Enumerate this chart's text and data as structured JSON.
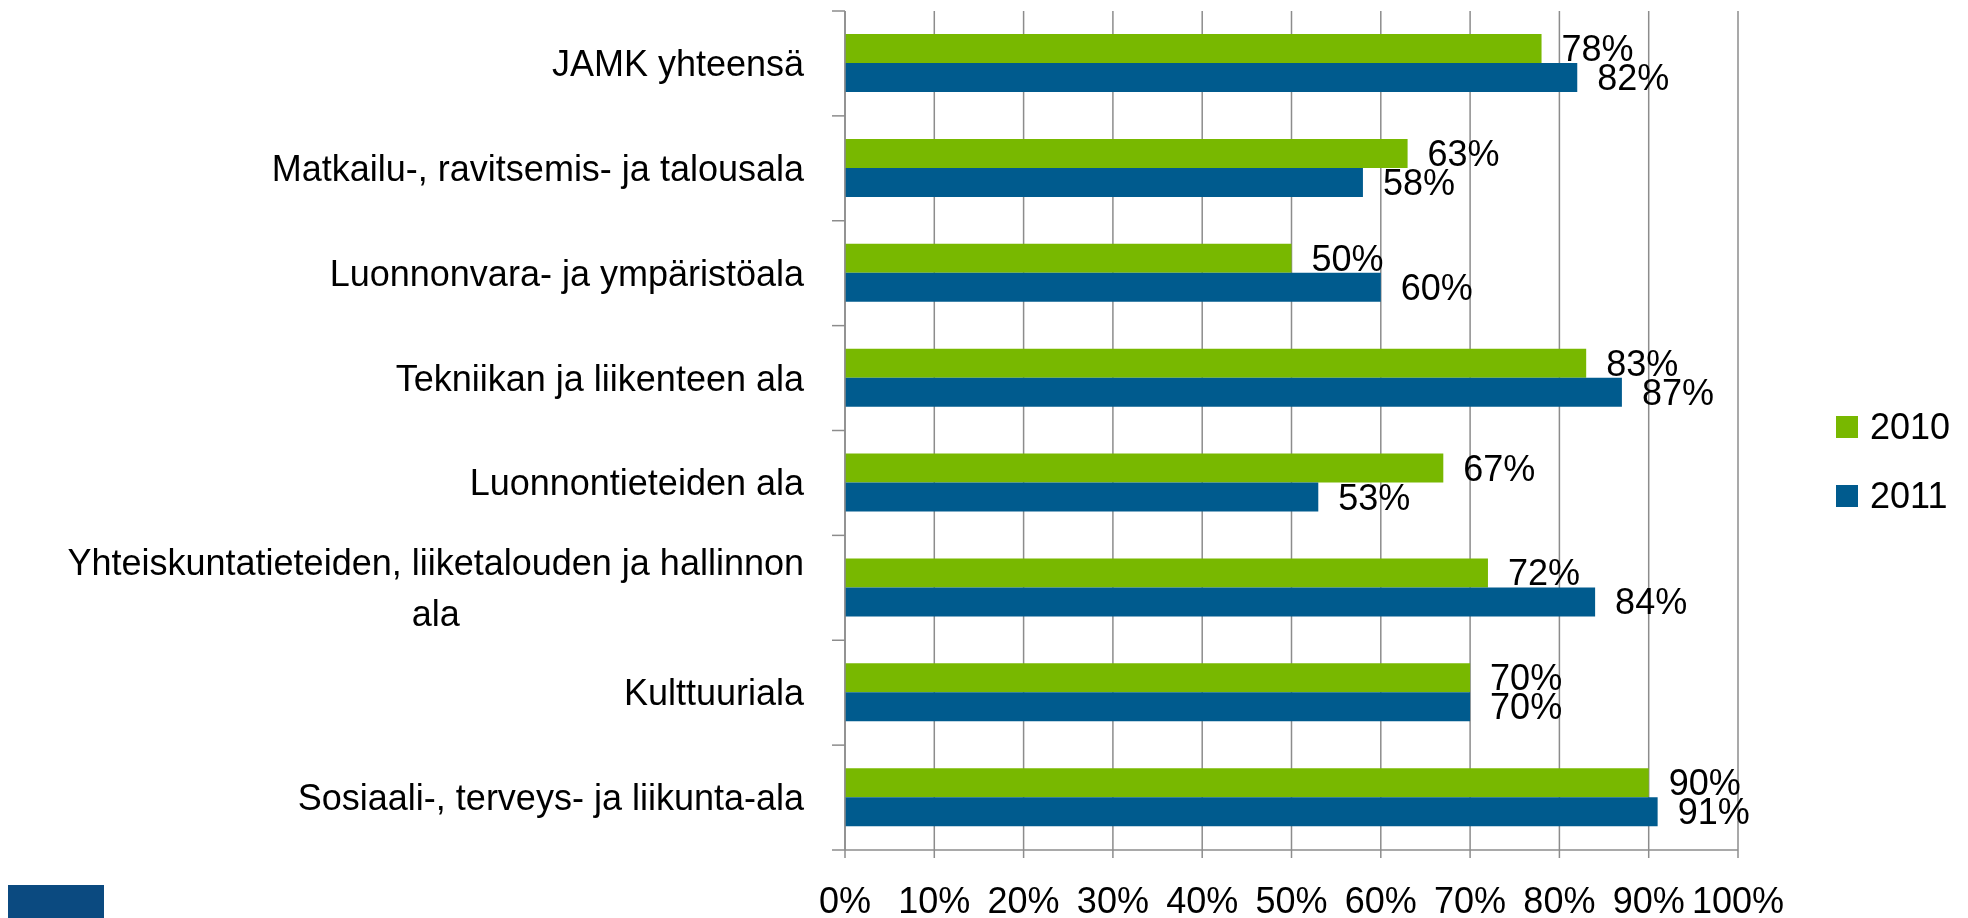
{
  "chart_data": {
    "type": "bar",
    "orientation": "horizontal",
    "categories": [
      "JAMK yhteensä",
      "Matkailu-, ravitsemis- ja talousala",
      "Luonnonvara- ja ympäristöala",
      "Tekniikan ja liikenteen ala",
      "Luonnontieteiden ala",
      "Yhteiskuntatieteiden, liiketalouden ja hallinnon ala",
      "Kulttuuriala",
      "Sosiaali-, terveys- ja liikunta-ala"
    ],
    "series": [
      {
        "name": "2010",
        "color": "#78b800",
        "values": [
          78,
          63,
          50,
          83,
          67,
          72,
          70,
          90
        ],
        "value_labels": [
          "78%",
          "63%",
          "50%",
          "83%",
          "67%",
          "72%",
          "70%",
          "90%"
        ]
      },
      {
        "name": "2011",
        "color": "#005b8e",
        "values": [
          82,
          58,
          60,
          87,
          53,
          84,
          70,
          91
        ],
        "value_labels": [
          "82%",
          "58%",
          "60%",
          "87%",
          "53%",
          "84%",
          "70%",
          "91%"
        ]
      }
    ],
    "xlim": [
      0,
      100
    ],
    "xticks": [
      {
        "value": 0,
        "label": "0%"
      },
      {
        "value": 10,
        "label": "10%"
      },
      {
        "value": 20,
        "label": "20%"
      },
      {
        "value": 30,
        "label": "30%"
      },
      {
        "value": 40,
        "label": "40%"
      },
      {
        "value": 50,
        "label": "50%"
      },
      {
        "value": 60,
        "label": "60%"
      },
      {
        "value": 70,
        "label": "70%"
      },
      {
        "value": 80,
        "label": "80%"
      },
      {
        "value": 90,
        "label": "90%"
      },
      {
        "value": 100,
        "label": "100%"
      }
    ],
    "grid": "x",
    "legend": "right"
  }
}
